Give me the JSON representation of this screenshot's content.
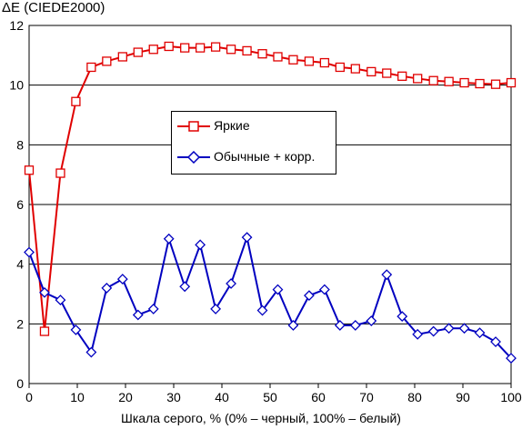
{
  "chart_data": {
    "type": "line",
    "title": "",
    "ylabel": "ΔE (CIEDE2000)",
    "xlabel": "Шкала серого, % (0% – черный, 100% – белый)",
    "xlim": [
      0,
      100
    ],
    "ylim": [
      0,
      12
    ],
    "xticks": [
      0,
      10,
      20,
      30,
      40,
      50,
      60,
      70,
      80,
      90,
      100
    ],
    "yticks": [
      0,
      2,
      4,
      6,
      8,
      10,
      12
    ],
    "grid": "horizontal",
    "legend_position": "center",
    "series": [
      {
        "name": "Яркие",
        "color": "#e00000",
        "marker": "square",
        "x": [
          0,
          3.2,
          6.5,
          9.7,
          12.9,
          16.1,
          19.4,
          22.6,
          25.8,
          29.0,
          32.3,
          35.5,
          38.7,
          41.9,
          45.2,
          48.4,
          51.6,
          54.8,
          58.1,
          61.3,
          64.5,
          67.7,
          71.0,
          74.2,
          77.4,
          80.6,
          83.9,
          87.1,
          90.3,
          93.5,
          96.8,
          100
        ],
        "values": [
          7.15,
          1.75,
          7.05,
          9.45,
          10.6,
          10.8,
          10.95,
          11.1,
          11.2,
          11.3,
          11.25,
          11.25,
          11.28,
          11.2,
          11.15,
          11.05,
          10.95,
          10.85,
          10.8,
          10.75,
          10.6,
          10.55,
          10.45,
          10.4,
          10.3,
          10.22,
          10.15,
          10.12,
          10.08,
          10.05,
          10.03,
          10.08
        ]
      },
      {
        "name": "Обычные + корр.",
        "color": "#0000c0",
        "marker": "diamond",
        "x": [
          0,
          3.2,
          6.5,
          9.7,
          12.9,
          16.1,
          19.4,
          22.6,
          25.8,
          29.0,
          32.3,
          35.5,
          38.7,
          41.9,
          45.2,
          48.4,
          51.6,
          54.8,
          58.1,
          61.3,
          64.5,
          67.7,
          71.0,
          74.2,
          77.4,
          80.6,
          83.9,
          87.1,
          90.3,
          93.5,
          96.8,
          100
        ],
        "values": [
          4.4,
          3.05,
          2.8,
          1.8,
          1.05,
          3.2,
          3.5,
          2.3,
          2.5,
          4.85,
          3.25,
          4.65,
          2.5,
          3.35,
          4.9,
          2.45,
          3.15,
          1.95,
          2.95,
          3.15,
          1.95,
          1.95,
          2.1,
          3.65,
          2.25,
          1.65,
          1.75,
          1.85,
          1.85,
          1.7,
          1.4,
          0.85
        ]
      }
    ]
  }
}
